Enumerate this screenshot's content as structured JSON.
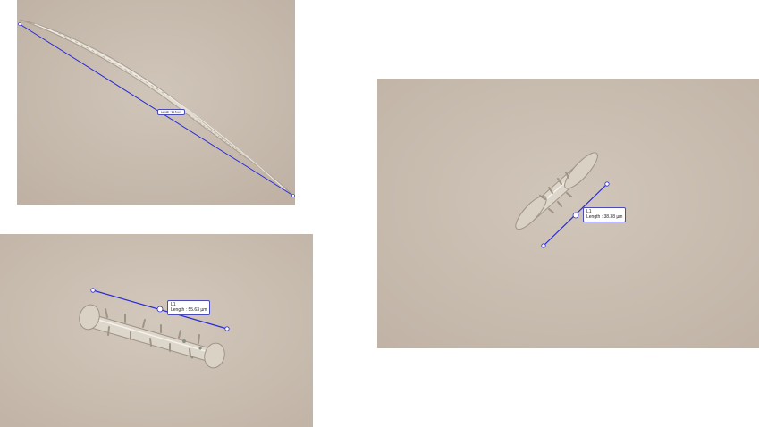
{
  "panels": [
    {
      "id": "top-left",
      "subject": "elongated fusiform sponge spicule",
      "measurement": {
        "tag": "",
        "text": "Length : 91.6 µm"
      }
    },
    {
      "id": "bottom-left",
      "subject": "spiny rod-shaped spicule",
      "measurement": {
        "tag": "L1",
        "text": "Length : 55.63 µm"
      }
    },
    {
      "id": "right",
      "subject": "spool-shaped spiny spicule (amphidisc)",
      "measurement": {
        "tag": "L1",
        "text": "Length : 38.38 µm"
      }
    }
  ],
  "colors": {
    "measure_line": "#2b2bd6",
    "background_tan": "#cbbfb4",
    "spicule": "#e6e1d6"
  }
}
